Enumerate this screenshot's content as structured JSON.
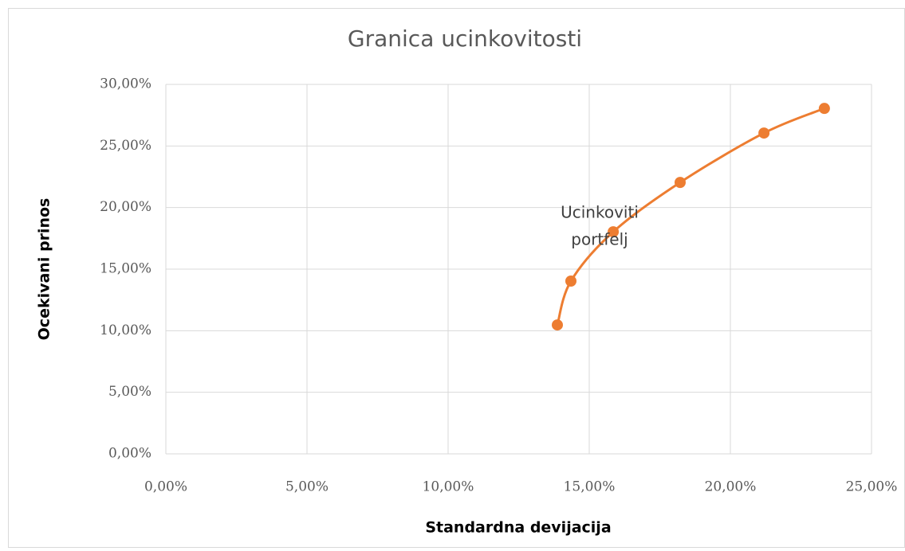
{
  "chart_data": {
    "type": "scatter",
    "title": "Granica ucinkovitosti",
    "x_label": "Standardna devijacija",
    "y_label": "Ocekivani prinos",
    "x": [
      13.87,
      14.35,
      15.85,
      18.22,
      21.19,
      23.33
    ],
    "values": [
      10.47,
      14.03,
      18.03,
      22.04,
      26.05,
      28.05
    ],
    "color": "#ed7d31",
    "smooth": true,
    "grid": true,
    "annotation": [
      "Ucinkoviti",
      "portfelj"
    ],
    "xlim": [
      0,
      25
    ],
    "xticks": [
      {
        "value": 0,
        "label": "0,00%"
      },
      {
        "value": 5,
        "label": "5,00%"
      },
      {
        "value": 10,
        "label": "10,00%"
      },
      {
        "value": 15,
        "label": "15,00%"
      },
      {
        "value": 20,
        "label": "20,00%"
      },
      {
        "value": 25,
        "label": "25,00%"
      }
    ],
    "ylim": [
      0,
      30
    ],
    "yticks": [
      {
        "value": 0,
        "label": "0,00%"
      },
      {
        "value": 5,
        "label": "5,00%"
      },
      {
        "value": 10,
        "label": "10,00%"
      },
      {
        "value": 15,
        "label": "15,00%"
      },
      {
        "value": 20,
        "label": "20,00%"
      },
      {
        "value": 25,
        "label": "25,00%"
      },
      {
        "value": 30,
        "label": "30,00%"
      }
    ]
  }
}
